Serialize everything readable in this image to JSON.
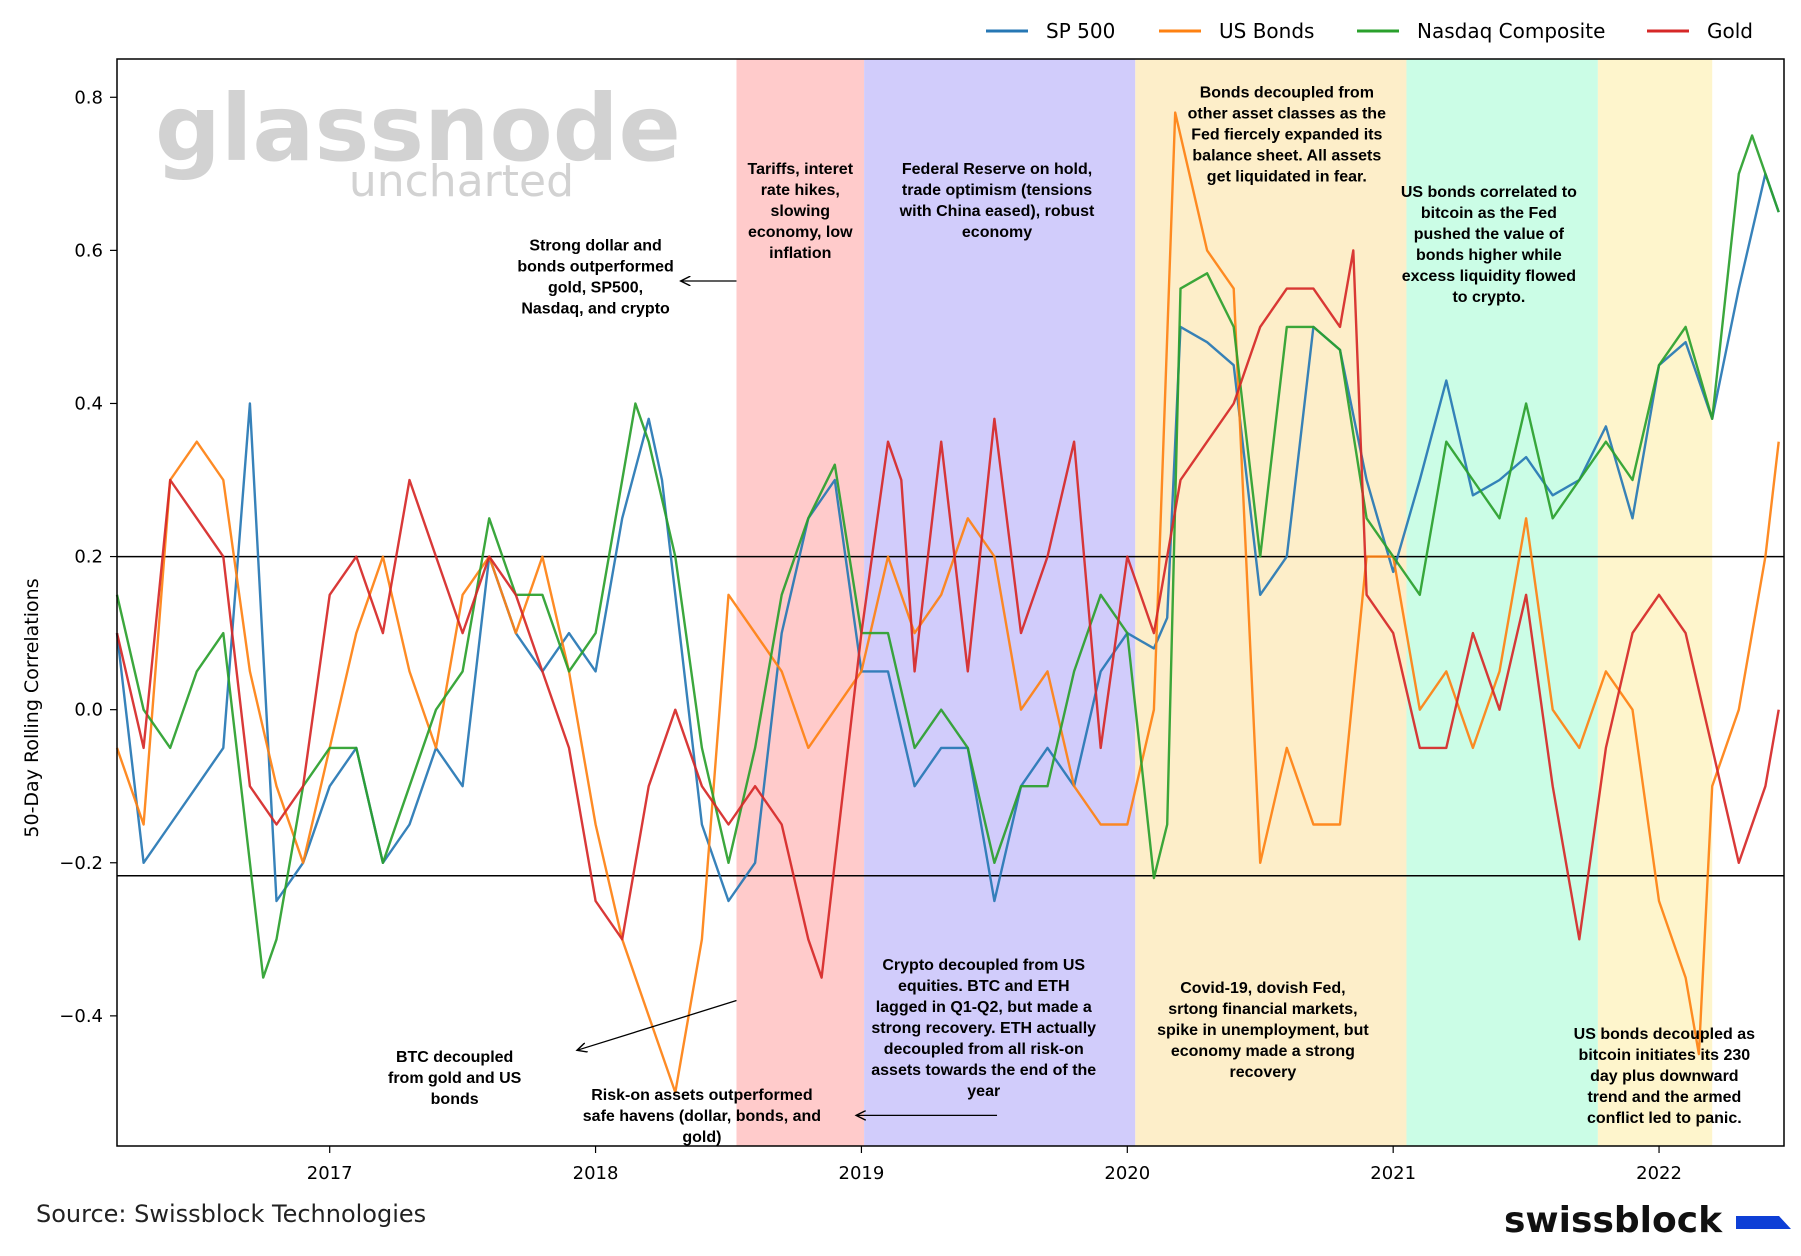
{
  "colors": {
    "sp500": "#2677b4",
    "bonds": "#fe8112",
    "nasdaq": "#2aa02c",
    "gold": "#d62827",
    "brand_accent": "#0e3fd6"
  },
  "watermark": {
    "main": "glassnode",
    "sub": "uncharted"
  },
  "footer": {
    "source": "Source: Swissblock Technologies",
    "brand": "swissblock"
  },
  "chart_data": {
    "type": "line",
    "title": "",
    "xlabel": "",
    "ylabel": "50-Day Rolling Correlations",
    "xlim": [
      2016.2,
      2022.47
    ],
    "ylim": [
      -0.57,
      0.85
    ],
    "xticks": [
      2017,
      2018,
      2019,
      2020,
      2021,
      2022
    ],
    "xtick_labels": [
      "2017",
      "2018",
      "2019",
      "2020",
      "2021",
      "2022"
    ],
    "yticks": [
      0.8,
      0.6,
      0.4,
      0.2,
      0.0,
      -0.2,
      -0.4
    ],
    "ytick_labels": [
      "0.8",
      "0.6",
      "0.4",
      "0.2",
      "0.0",
      "−0.2",
      "−0.4"
    ],
    "hlines": [
      0.2,
      -0.217
    ],
    "grid": false,
    "legend_position": "top-right",
    "regimes": [
      {
        "start": 2018.53,
        "end": 2019.01,
        "color": "#ffcbcb"
      },
      {
        "start": 2019.01,
        "end": 2020.03,
        "color": "#d1ccfb"
      },
      {
        "start": 2020.03,
        "end": 2021.05,
        "color": "#fdeec9"
      },
      {
        "start": 2021.05,
        "end": 2021.77,
        "color": "#cbfde6"
      },
      {
        "start": 2021.77,
        "end": 2022.2,
        "color": "#fef5cc"
      }
    ],
    "series": [
      {
        "name": "SP 500",
        "key": "sp500",
        "x": [
          2016.2,
          2016.3,
          2016.4,
          2016.5,
          2016.6,
          2016.7,
          2016.8,
          2016.9,
          2017.0,
          2017.1,
          2017.2,
          2017.3,
          2017.4,
          2017.5,
          2017.6,
          2017.7,
          2017.8,
          2017.9,
          2018.0,
          2018.1,
          2018.2,
          2018.25,
          2018.3,
          2018.4,
          2018.5,
          2018.6,
          2018.7,
          2018.8,
          2018.9,
          2019.0,
          2019.1,
          2019.2,
          2019.3,
          2019.4,
          2019.5,
          2019.6,
          2019.7,
          2019.8,
          2019.9,
          2020.0,
          2020.1,
          2020.15,
          2020.2,
          2020.3,
          2020.4,
          2020.5,
          2020.6,
          2020.7,
          2020.8,
          2020.9,
          2021.0,
          2021.1,
          2021.2,
          2021.3,
          2021.4,
          2021.5,
          2021.6,
          2021.7,
          2021.8,
          2021.9,
          2022.0,
          2022.1,
          2022.2,
          2022.3,
          2022.4,
          2022.45
        ],
        "values": [
          0.1,
          -0.2,
          -0.15,
          -0.1,
          -0.05,
          0.4,
          -0.25,
          -0.2,
          -0.1,
          -0.05,
          -0.2,
          -0.15,
          -0.05,
          -0.1,
          0.2,
          0.1,
          0.05,
          0.1,
          0.05,
          0.25,
          0.38,
          0.3,
          0.15,
          -0.15,
          -0.25,
          -0.2,
          0.1,
          0.25,
          0.3,
          0.05,
          0.05,
          -0.1,
          -0.05,
          -0.05,
          -0.25,
          -0.1,
          -0.05,
          -0.1,
          0.05,
          0.1,
          0.08,
          0.12,
          0.5,
          0.48,
          0.45,
          0.15,
          0.2,
          0.5,
          0.47,
          0.3,
          0.18,
          0.3,
          0.43,
          0.28,
          0.3,
          0.33,
          0.28,
          0.3,
          0.37,
          0.25,
          0.45,
          0.48,
          0.38,
          0.55,
          0.7,
          0.65
        ]
      },
      {
        "name": "US Bonds",
        "key": "bonds",
        "x": [
          2016.2,
          2016.3,
          2016.4,
          2016.5,
          2016.6,
          2016.7,
          2016.8,
          2016.9,
          2017.0,
          2017.1,
          2017.2,
          2017.3,
          2017.4,
          2017.5,
          2017.6,
          2017.7,
          2017.8,
          2017.9,
          2018.0,
          2018.1,
          2018.2,
          2018.3,
          2018.35,
          2018.4,
          2018.5,
          2018.6,
          2018.7,
          2018.8,
          2018.9,
          2019.0,
          2019.1,
          2019.2,
          2019.3,
          2019.4,
          2019.5,
          2019.6,
          2019.7,
          2019.8,
          2019.9,
          2020.0,
          2020.1,
          2020.18,
          2020.3,
          2020.4,
          2020.5,
          2020.6,
          2020.7,
          2020.8,
          2020.9,
          2021.0,
          2021.1,
          2021.2,
          2021.3,
          2021.4,
          2021.5,
          2021.6,
          2021.7,
          2021.8,
          2021.9,
          2022.0,
          2022.1,
          2022.15,
          2022.2,
          2022.3,
          2022.4,
          2022.45
        ],
        "values": [
          -0.05,
          -0.15,
          0.3,
          0.35,
          0.3,
          0.05,
          -0.1,
          -0.2,
          -0.05,
          0.1,
          0.2,
          0.05,
          -0.05,
          0.15,
          0.2,
          0.1,
          0.2,
          0.05,
          -0.15,
          -0.3,
          -0.4,
          -0.5,
          -0.4,
          -0.3,
          0.15,
          0.1,
          0.05,
          -0.05,
          0.0,
          0.05,
          0.2,
          0.1,
          0.15,
          0.25,
          0.2,
          0.0,
          0.05,
          -0.1,
          -0.15,
          -0.15,
          0.0,
          0.78,
          0.6,
          0.55,
          -0.2,
          -0.05,
          -0.15,
          -0.15,
          0.2,
          0.2,
          0.0,
          0.05,
          -0.05,
          0.05,
          0.25,
          0.0,
          -0.05,
          0.05,
          0.0,
          -0.25,
          -0.35,
          -0.45,
          -0.1,
          0.0,
          0.2,
          0.35
        ]
      },
      {
        "name": "Nasdaq Composite",
        "key": "nasdaq",
        "x": [
          2016.2,
          2016.3,
          2016.4,
          2016.5,
          2016.6,
          2016.7,
          2016.75,
          2016.8,
          2016.9,
          2017.0,
          2017.1,
          2017.2,
          2017.3,
          2017.4,
          2017.5,
          2017.6,
          2017.7,
          2017.8,
          2017.9,
          2018.0,
          2018.1,
          2018.15,
          2018.2,
          2018.3,
          2018.4,
          2018.5,
          2018.6,
          2018.7,
          2018.8,
          2018.9,
          2019.0,
          2019.1,
          2019.2,
          2019.3,
          2019.4,
          2019.5,
          2019.6,
          2019.7,
          2019.8,
          2019.9,
          2020.0,
          2020.1,
          2020.15,
          2020.2,
          2020.3,
          2020.4,
          2020.5,
          2020.6,
          2020.7,
          2020.8,
          2020.9,
          2021.0,
          2021.1,
          2021.2,
          2021.3,
          2021.4,
          2021.5,
          2021.6,
          2021.7,
          2021.8,
          2021.9,
          2022.0,
          2022.1,
          2022.2,
          2022.3,
          2022.35,
          2022.45
        ],
        "values": [
          0.15,
          0.0,
          -0.05,
          0.05,
          0.1,
          -0.2,
          -0.35,
          -0.3,
          -0.1,
          -0.05,
          -0.05,
          -0.2,
          -0.1,
          0.0,
          0.05,
          0.25,
          0.15,
          0.15,
          0.05,
          0.1,
          0.3,
          0.4,
          0.35,
          0.2,
          -0.05,
          -0.2,
          -0.05,
          0.15,
          0.25,
          0.32,
          0.1,
          0.1,
          -0.05,
          0.0,
          -0.05,
          -0.2,
          -0.1,
          -0.1,
          0.05,
          0.15,
          0.1,
          -0.22,
          -0.15,
          0.55,
          0.57,
          0.5,
          0.2,
          0.5,
          0.5,
          0.47,
          0.25,
          0.2,
          0.15,
          0.35,
          0.3,
          0.25,
          0.4,
          0.25,
          0.3,
          0.35,
          0.3,
          0.45,
          0.5,
          0.38,
          0.7,
          0.75,
          0.65
        ]
      },
      {
        "name": "Gold",
        "key": "gold",
        "x": [
          2016.2,
          2016.3,
          2016.4,
          2016.5,
          2016.6,
          2016.7,
          2016.8,
          2016.9,
          2017.0,
          2017.1,
          2017.2,
          2017.3,
          2017.4,
          2017.5,
          2017.6,
          2017.7,
          2017.8,
          2017.9,
          2018.0,
          2018.1,
          2018.2,
          2018.3,
          2018.4,
          2018.5,
          2018.6,
          2018.7,
          2018.8,
          2018.85,
          2018.9,
          2019.0,
          2019.1,
          2019.15,
          2019.2,
          2019.3,
          2019.4,
          2019.5,
          2019.6,
          2019.7,
          2019.8,
          2019.9,
          2020.0,
          2020.1,
          2020.2,
          2020.3,
          2020.4,
          2020.5,
          2020.6,
          2020.7,
          2020.8,
          2020.85,
          2020.9,
          2021.0,
          2021.1,
          2021.2,
          2021.3,
          2021.4,
          2021.5,
          2021.6,
          2021.7,
          2021.8,
          2021.9,
          2022.0,
          2022.1,
          2022.2,
          2022.3,
          2022.4,
          2022.45
        ],
        "values": [
          0.1,
          -0.05,
          0.3,
          0.25,
          0.2,
          -0.1,
          -0.15,
          -0.1,
          0.15,
          0.2,
          0.1,
          0.3,
          0.2,
          0.1,
          0.2,
          0.15,
          0.05,
          -0.05,
          -0.25,
          -0.3,
          -0.1,
          0.0,
          -0.1,
          -0.15,
          -0.1,
          -0.15,
          -0.3,
          -0.35,
          -0.2,
          0.1,
          0.35,
          0.3,
          0.05,
          0.35,
          0.05,
          0.38,
          0.1,
          0.2,
          0.35,
          -0.05,
          0.2,
          0.1,
          0.3,
          0.35,
          0.4,
          0.5,
          0.55,
          0.55,
          0.5,
          0.6,
          0.15,
          0.1,
          -0.05,
          -0.05,
          0.1,
          0.0,
          0.15,
          -0.1,
          -0.3,
          -0.05,
          0.1,
          0.15,
          0.1,
          -0.05,
          -0.2,
          -0.1,
          0.0
        ]
      }
    ],
    "annotations": [
      {
        "id": "strong-dollar",
        "x": 2018.0,
        "y": 0.6,
        "lines": [
          "Strong dollar and",
          "bonds outperformed",
          "gold, SP500,",
          "Nasdaq, and crypto"
        ]
      },
      {
        "id": "tariffs",
        "x": 2018.77,
        "y": 0.7,
        "lines": [
          "Tariffs, interet",
          "rate hikes,",
          "slowing",
          "economy, low",
          "inflation"
        ]
      },
      {
        "id": "fed-hold",
        "x": 2019.51,
        "y": 0.7,
        "lines": [
          "Federal Reserve on hold,",
          "trade optimism (tensions",
          "with China eased), robust",
          "economy"
        ]
      },
      {
        "id": "bonds-decoupled-2020",
        "x": 2020.6,
        "y": 0.8,
        "lines": [
          "Bonds decoupled from",
          "other asset classes as the",
          "Fed fiercely expanded its",
          "balance sheet. All assets",
          "get liquidated in fear."
        ]
      },
      {
        "id": "bonds-correlated-2021",
        "x": 2021.36,
        "y": 0.67,
        "lines": [
          "US bonds correlated to",
          "bitcoin as the Fed",
          "pushed the value of",
          "bonds higher while",
          "excess liquidity flowed",
          "to crypto."
        ]
      },
      {
        "id": "btc-decoupled",
        "x": 2017.47,
        "y": -0.46,
        "lines": [
          "BTC decoupled",
          "from gold and US",
          "bonds"
        ]
      },
      {
        "id": "risk-on",
        "x": 2018.4,
        "y": -0.51,
        "lines": [
          "Risk-on assets outperformed",
          "safe havens (dollar, bonds, and",
          "gold)"
        ]
      },
      {
        "id": "crypto-decoupled",
        "x": 2019.46,
        "y": -0.34,
        "lines": [
          "Crypto decoupled from US",
          "equities. BTC and ETH",
          "lagged in Q1-Q2, but made a",
          "strong recovery. ETH actually",
          "decoupled from all risk-on",
          "assets towards the end of the",
          "year"
        ]
      },
      {
        "id": "covid",
        "x": 2020.51,
        "y": -0.37,
        "lines": [
          "Covid-19, dovish Fed,",
          "srtong financial markets,",
          "spike in unemployment, but",
          "economy made a strong",
          "recovery"
        ]
      },
      {
        "id": "bonds-decoupled-2022",
        "x": 2022.02,
        "y": -0.43,
        "lines": [
          "US bonds decoupled as",
          "bitcoin initiates its 230",
          "day plus downward",
          "trend and the armed",
          "conflict led to panic."
        ]
      }
    ],
    "arrows": [
      {
        "from": [
          2018.53,
          0.56
        ],
        "to": [
          2018.32,
          0.56
        ]
      },
      {
        "from": [
          2018.53,
          -0.38
        ],
        "to": [
          2017.93,
          -0.445
        ]
      },
      {
        "from": [
          2019.51,
          -0.53
        ],
        "to": [
          2018.98,
          -0.53
        ]
      }
    ]
  }
}
